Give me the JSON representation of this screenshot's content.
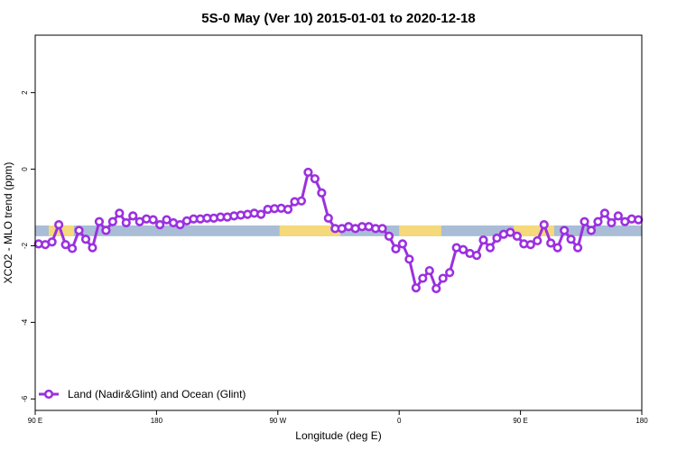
{
  "chart_data": {
    "type": "line",
    "title": "5S-0 May (Ver 10)   2015-01-01 to 2020-12-18",
    "xlabel": "Longitude (deg E)",
    "ylabel": "XCO2 - MLO trend (ppm)",
    "xlim": [
      90,
      450
    ],
    "ylim": [
      -6.3,
      3.5
    ],
    "x_ticks": [
      {
        "value": 90,
        "label": "90 E"
      },
      {
        "value": 162,
        "label": "180"
      },
      {
        "value": 234,
        "label": "90 W"
      },
      {
        "value": 306,
        "label": "0"
      },
      {
        "value": 378,
        "label": "90 E"
      },
      {
        "value": 450,
        "label": "180"
      }
    ],
    "y_ticks": [
      {
        "value": 2,
        "label": "2"
      },
      {
        "value": 0,
        "label": "0"
      },
      {
        "value": -2,
        "label": "-2"
      },
      {
        "value": -4,
        "label": "-4"
      },
      {
        "value": -6,
        "label": "-6"
      }
    ],
    "grid": false,
    "legend_position": "bottom-left",
    "background_band": {
      "y_range": [
        -1.75,
        -1.47
      ],
      "ocean_color": "#a9bdd6",
      "land_color": "#f5d97a",
      "land_segments": [
        [
          98,
          113
        ],
        [
          235,
          271
        ],
        [
          306,
          331
        ],
        [
          374,
          398
        ]
      ]
    },
    "series": [
      {
        "name": "Land (Nadir&Glint) and Ocean (Glint)",
        "color": "#9b30e0",
        "x": [
          92,
          96,
          100,
          104,
          108,
          112,
          116,
          120,
          124,
          128,
          132,
          136,
          140,
          144,
          148,
          152,
          156,
          160,
          164,
          168,
          172,
          176,
          180,
          184,
          188,
          192,
          196,
          200,
          204,
          208,
          212,
          216,
          220,
          224,
          228,
          232,
          236,
          240,
          244,
          248,
          252,
          256,
          260,
          264,
          268,
          272,
          276,
          280,
          284,
          288,
          292,
          296,
          300,
          304,
          308,
          312,
          316,
          320,
          324,
          328,
          332,
          336,
          340,
          344,
          348,
          352,
          356,
          360,
          364,
          368,
          372,
          376,
          380,
          384,
          388,
          392,
          396,
          400,
          404,
          408,
          412,
          416,
          420,
          424,
          428,
          432,
          436,
          440,
          444,
          448
        ],
        "values": [
          -1.95,
          -1.97,
          -1.9,
          -1.45,
          -1.97,
          -2.07,
          -1.6,
          -1.83,
          -2.05,
          -1.37,
          -1.6,
          -1.37,
          -1.15,
          -1.4,
          -1.22,
          -1.37,
          -1.3,
          -1.32,
          -1.45,
          -1.32,
          -1.4,
          -1.45,
          -1.35,
          -1.3,
          -1.3,
          -1.28,
          -1.28,
          -1.25,
          -1.25,
          -1.22,
          -1.2,
          -1.18,
          -1.15,
          -1.18,
          -1.05,
          -1.03,
          -1.02,
          -1.05,
          -0.85,
          -0.83,
          -0.08,
          -0.25,
          -0.62,
          -1.28,
          -1.55,
          -1.55,
          -1.5,
          -1.55,
          -1.5,
          -1.5,
          -1.55,
          -1.55,
          -1.75,
          -2.08,
          -1.95,
          -2.35,
          -3.1,
          -2.85,
          -2.65,
          -3.12,
          -2.85,
          -2.7,
          -2.05,
          -2.1,
          -2.2,
          -2.25,
          -1.85,
          -2.05,
          -1.8,
          -1.7,
          -1.65,
          -1.75,
          -1.95,
          -1.97,
          -1.87,
          -1.45,
          -1.93,
          -2.05,
          -1.6,
          -1.83,
          -2.05,
          -1.37,
          -1.6,
          -1.37,
          -1.15,
          -1.4,
          -1.22,
          -1.37,
          -1.3,
          -1.32
        ]
      }
    ]
  }
}
